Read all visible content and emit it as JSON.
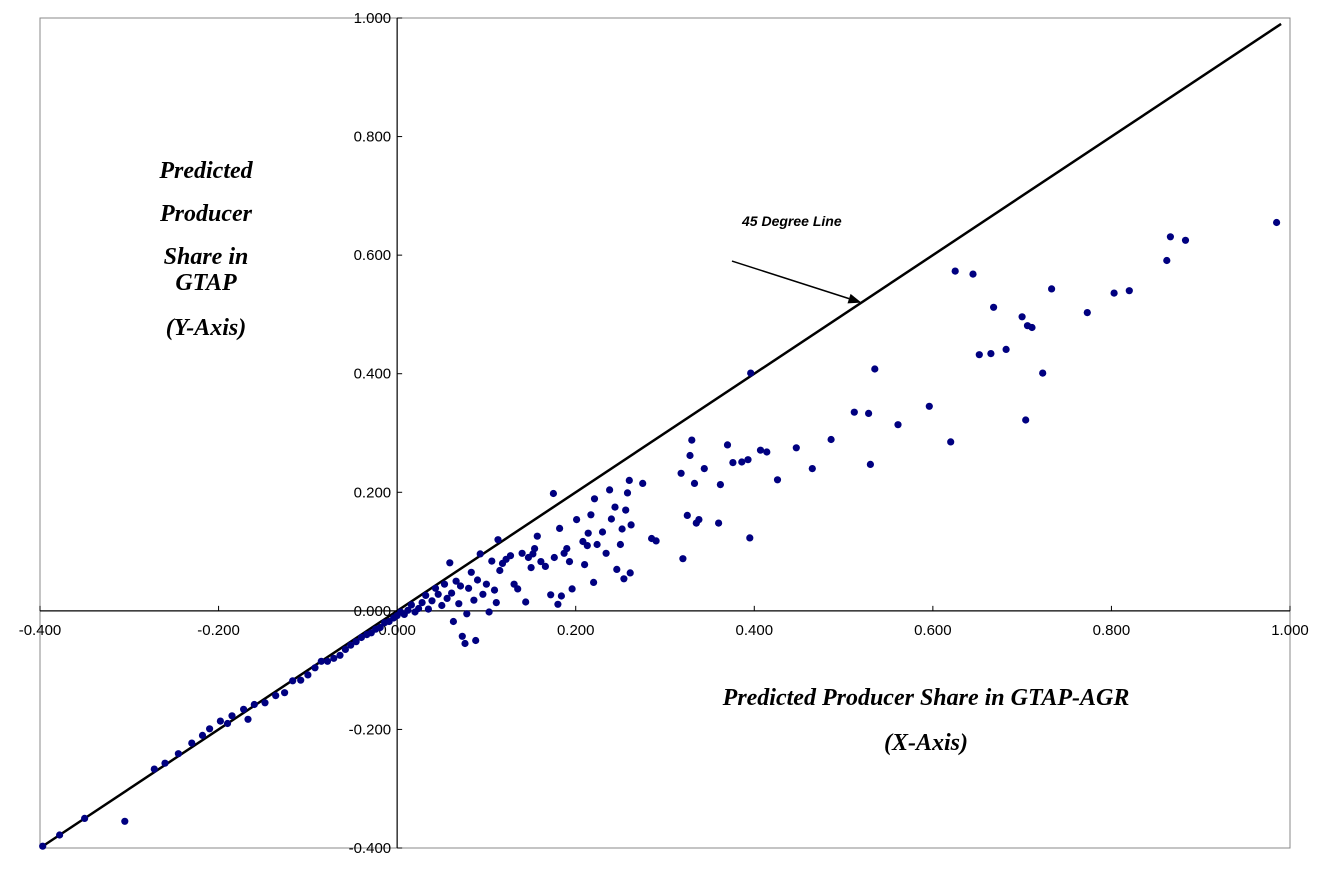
{
  "chart_data": {
    "type": "scatter",
    "title": "",
    "xlabel": [
      "Predicted Producer Share in GTAP-AGR",
      "(X-Axis)"
    ],
    "ylabel": [
      "Predicted",
      "Producer",
      "Share in",
      "GTAP",
      "(Y-Axis)"
    ],
    "xlim": [
      -0.4,
      1.0
    ],
    "ylim": [
      -0.4,
      1.0
    ],
    "x_ticks": [
      "-0.400",
      "-0.200",
      "0.000",
      "0.200",
      "0.400",
      "0.600",
      "0.800",
      "1.000"
    ],
    "y_ticks": [
      "-0.400",
      "-0.200",
      "0.000",
      "0.200",
      "0.400",
      "0.600",
      "0.800",
      "1.000"
    ],
    "grid": false,
    "legend": "none",
    "reference_line": {
      "label": "45 Degree Line",
      "from": [
        -0.4,
        -0.4
      ],
      "to": [
        1.0,
        1.0
      ]
    },
    "annotation": {
      "text": "45 Degree Line",
      "arrow_from": [
        0.375,
        0.59
      ],
      "arrow_to": [
        0.52,
        0.52
      ]
    },
    "marker_color": "#000080",
    "line_color": "#000000",
    "points": [
      [
        0.985,
        0.655
      ],
      [
        0.883,
        0.625
      ],
      [
        0.866,
        0.631
      ],
      [
        0.862,
        0.591
      ],
      [
        0.82,
        0.54
      ],
      [
        0.803,
        0.536
      ],
      [
        0.773,
        0.503
      ],
      [
        0.733,
        0.543
      ],
      [
        0.723,
        0.401
      ],
      [
        0.711,
        0.478
      ],
      [
        0.706,
        0.481
      ],
      [
        0.704,
        0.322
      ],
      [
        0.7,
        0.496
      ],
      [
        0.682,
        0.441
      ],
      [
        0.668,
        0.512
      ],
      [
        0.665,
        0.434
      ],
      [
        0.652,
        0.432
      ],
      [
        0.645,
        0.568
      ],
      [
        0.625,
        0.573
      ],
      [
        0.62,
        0.285
      ],
      [
        0.596,
        0.345
      ],
      [
        0.561,
        0.314
      ],
      [
        0.535,
        0.408
      ],
      [
        0.53,
        0.247
      ],
      [
        0.528,
        0.333
      ],
      [
        0.512,
        0.335
      ],
      [
        0.486,
        0.289
      ],
      [
        0.465,
        0.24
      ],
      [
        0.447,
        0.275
      ],
      [
        0.426,
        0.221
      ],
      [
        0.414,
        0.268
      ],
      [
        0.407,
        0.271
      ],
      [
        0.396,
        0.401
      ],
      [
        0.395,
        0.123
      ],
      [
        0.393,
        0.255
      ],
      [
        0.386,
        0.251
      ],
      [
        0.376,
        0.25
      ],
      [
        0.37,
        0.28
      ],
      [
        0.362,
        0.213
      ],
      [
        0.36,
        0.148
      ],
      [
        0.344,
        0.24
      ],
      [
        0.338,
        0.154
      ],
      [
        0.335,
        0.148
      ],
      [
        0.333,
        0.215
      ],
      [
        0.33,
        0.288
      ],
      [
        0.328,
        0.262
      ],
      [
        0.325,
        0.161
      ],
      [
        0.32,
        0.088
      ],
      [
        0.318,
        0.232
      ],
      [
        0.29,
        0.118
      ],
      [
        0.285,
        0.122
      ],
      [
        0.275,
        0.215
      ],
      [
        0.262,
        0.145
      ],
      [
        0.261,
        0.064
      ],
      [
        0.26,
        0.22
      ],
      [
        0.258,
        0.199
      ],
      [
        0.256,
        0.17
      ],
      [
        0.254,
        0.054
      ],
      [
        0.252,
        0.138
      ],
      [
        0.25,
        0.112
      ],
      [
        0.246,
        0.07
      ],
      [
        0.244,
        0.175
      ],
      [
        0.24,
        0.155
      ],
      [
        0.238,
        0.204
      ],
      [
        0.234,
        0.097
      ],
      [
        0.23,
        0.133
      ],
      [
        0.224,
        0.112
      ],
      [
        0.221,
        0.189
      ],
      [
        0.22,
        0.048
      ],
      [
        0.217,
        0.162
      ],
      [
        0.214,
        0.131
      ],
      [
        0.213,
        0.11
      ],
      [
        0.21,
        0.078
      ],
      [
        0.208,
        0.117
      ],
      [
        0.201,
        0.154
      ],
      [
        0.196,
        0.037
      ],
      [
        0.193,
        0.083
      ],
      [
        0.19,
        0.105
      ],
      [
        0.187,
        0.097
      ],
      [
        0.184,
        0.025
      ],
      [
        0.182,
        0.139
      ],
      [
        0.18,
        0.011
      ],
      [
        0.176,
        0.09
      ],
      [
        0.175,
        0.198
      ],
      [
        0.172,
        0.027
      ],
      [
        0.166,
        0.075
      ],
      [
        0.161,
        0.083
      ],
      [
        0.157,
        0.126
      ],
      [
        0.154,
        0.105
      ],
      [
        0.152,
        0.096
      ],
      [
        0.15,
        0.073
      ],
      [
        0.147,
        0.09
      ],
      [
        0.144,
        0.015
      ],
      [
        0.14,
        0.097
      ],
      [
        0.135,
        0.037
      ],
      [
        0.131,
        0.045
      ],
      [
        0.127,
        0.093
      ],
      [
        0.122,
        0.087
      ],
      [
        0.118,
        0.08
      ],
      [
        0.115,
        0.068
      ],
      [
        0.113,
        0.12
      ],
      [
        0.111,
        0.014
      ],
      [
        0.109,
        0.035
      ],
      [
        0.106,
        0.084
      ],
      [
        0.103,
        -0.002
      ],
      [
        0.1,
        0.045
      ],
      [
        0.096,
        0.028
      ],
      [
        0.093,
        0.096
      ],
      [
        0.09,
        0.052
      ],
      [
        0.088,
        -0.05
      ],
      [
        0.086,
        0.018
      ],
      [
        0.083,
        0.065
      ],
      [
        0.08,
        0.038
      ],
      [
        0.078,
        -0.005
      ],
      [
        0.076,
        -0.055
      ],
      [
        0.073,
        -0.043
      ],
      [
        0.071,
        0.042
      ],
      [
        0.069,
        0.012
      ],
      [
        0.066,
        0.05
      ],
      [
        0.063,
        -0.018
      ],
      [
        0.061,
        0.03
      ],
      [
        0.059,
        0.081
      ],
      [
        0.056,
        0.021
      ],
      [
        0.053,
        0.045
      ],
      [
        0.05,
        0.009
      ],
      [
        0.046,
        0.028
      ],
      [
        0.043,
        0.038
      ],
      [
        0.039,
        0.017
      ],
      [
        0.035,
        0.003
      ],
      [
        0.032,
        0.026
      ],
      [
        0.028,
        0.014
      ],
      [
        0.024,
        0.004
      ],
      [
        0.02,
        -0.002
      ],
      [
        0.016,
        0.01
      ],
      [
        0.012,
        0.001
      ],
      [
        0.008,
        -0.006
      ],
      [
        0.004,
        -0.002
      ],
      [
        0.0,
        -0.008
      ],
      [
        -0.004,
        -0.012
      ],
      [
        -0.009,
        -0.018
      ],
      [
        -0.014,
        -0.02
      ],
      [
        -0.019,
        -0.028
      ],
      [
        -0.024,
        -0.031
      ],
      [
        -0.029,
        -0.037
      ],
      [
        -0.034,
        -0.04
      ],
      [
        -0.04,
        -0.045
      ],
      [
        -0.046,
        -0.052
      ],
      [
        -0.052,
        -0.058
      ],
      [
        -0.058,
        -0.065
      ],
      [
        -0.064,
        -0.075
      ],
      [
        -0.071,
        -0.08
      ],
      [
        -0.078,
        -0.085
      ],
      [
        -0.085,
        -0.085
      ],
      [
        -0.092,
        -0.096
      ],
      [
        -0.1,
        -0.108
      ],
      [
        -0.108,
        -0.117
      ],
      [
        -0.117,
        -0.118
      ],
      [
        -0.126,
        -0.138
      ],
      [
        -0.136,
        -0.143
      ],
      [
        -0.148,
        -0.155
      ],
      [
        -0.16,
        -0.158
      ],
      [
        -0.167,
        -0.183
      ],
      [
        -0.172,
        -0.166
      ],
      [
        -0.185,
        -0.177
      ],
      [
        -0.19,
        -0.19
      ],
      [
        -0.198,
        -0.186
      ],
      [
        -0.21,
        -0.199
      ],
      [
        -0.218,
        -0.21
      ],
      [
        -0.23,
        -0.223
      ],
      [
        -0.245,
        -0.241
      ],
      [
        -0.26,
        -0.257
      ],
      [
        -0.272,
        -0.267
      ],
      [
        -0.305,
        -0.355
      ],
      [
        -0.35,
        -0.35
      ],
      [
        -0.378,
        -0.378
      ],
      [
        -0.397,
        -0.397
      ]
    ]
  }
}
